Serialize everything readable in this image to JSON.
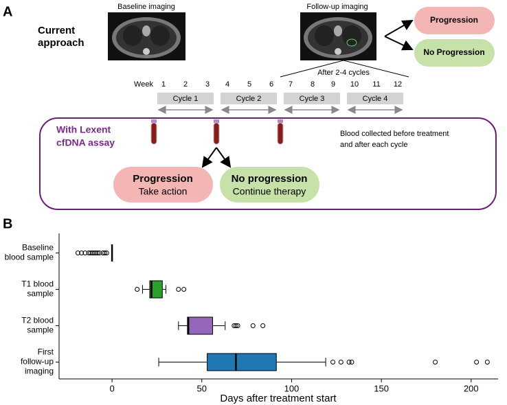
{
  "panel_a": {
    "label": "A",
    "current_approach": [
      "Current",
      "approach"
    ],
    "baseline_imaging": "Baseline imaging",
    "followup_imaging": "Follow-up imaging",
    "outcome_progression": "Progression",
    "outcome_no_progression": "No Progression",
    "after_cycles": "After 2-4 cycles",
    "week_label": "Week",
    "weeks": [
      "1",
      "2",
      "3",
      "4",
      "5",
      "6",
      "7",
      "8",
      "9",
      "10",
      "11",
      "12"
    ],
    "cycles": [
      "Cycle 1",
      "Cycle 2",
      "Cycle 3",
      "Cycle 4"
    ],
    "assay_title": [
      "With Lexent",
      "cfDNA assay"
    ],
    "blood_note": [
      "Blood collected before treatment",
      "and after each cycle"
    ],
    "result_progression": [
      "Progression",
      "Take action"
    ],
    "result_no_progression": [
      "No progression",
      "Continue therapy"
    ]
  },
  "chart_data": {
    "type": "box",
    "label": "B",
    "horizontal": true,
    "categories": [
      "Baseline\nblood sample",
      "T1 blood\nsample",
      "T2 blood\nsample",
      "First\nfollow-up\nimaging"
    ],
    "boxes": [
      {
        "min": 0,
        "q1": 0,
        "median": 0,
        "q3": 0,
        "max": 0,
        "outliers": [
          -19,
          -17,
          -15,
          -13,
          -12,
          -11,
          -10,
          -9,
          -8,
          -7,
          -5,
          -4,
          -3
        ]
      },
      {
        "min": 17,
        "q1": 21,
        "median": 22,
        "q3": 28,
        "max": 30,
        "outliers": [
          14,
          37,
          40
        ],
        "color": "#2ca02c"
      },
      {
        "min": 37,
        "q1": 42,
        "median": 42.5,
        "q3": 56,
        "max": 63,
        "outliers": [
          68,
          69,
          70,
          78.5,
          84
        ],
        "color": "#9467bd"
      },
      {
        "min": 26,
        "q1": 53,
        "median": 69,
        "q3": 91.5,
        "max": 119,
        "outliers": [
          123,
          127.5,
          132,
          133.5,
          180,
          203,
          209
        ],
        "color": "#1f77b4"
      }
    ],
    "xlabel": "Days after treatment start",
    "xlim": [
      -29.5,
      215
    ],
    "xticks": [
      0,
      50,
      100,
      150,
      200
    ]
  }
}
